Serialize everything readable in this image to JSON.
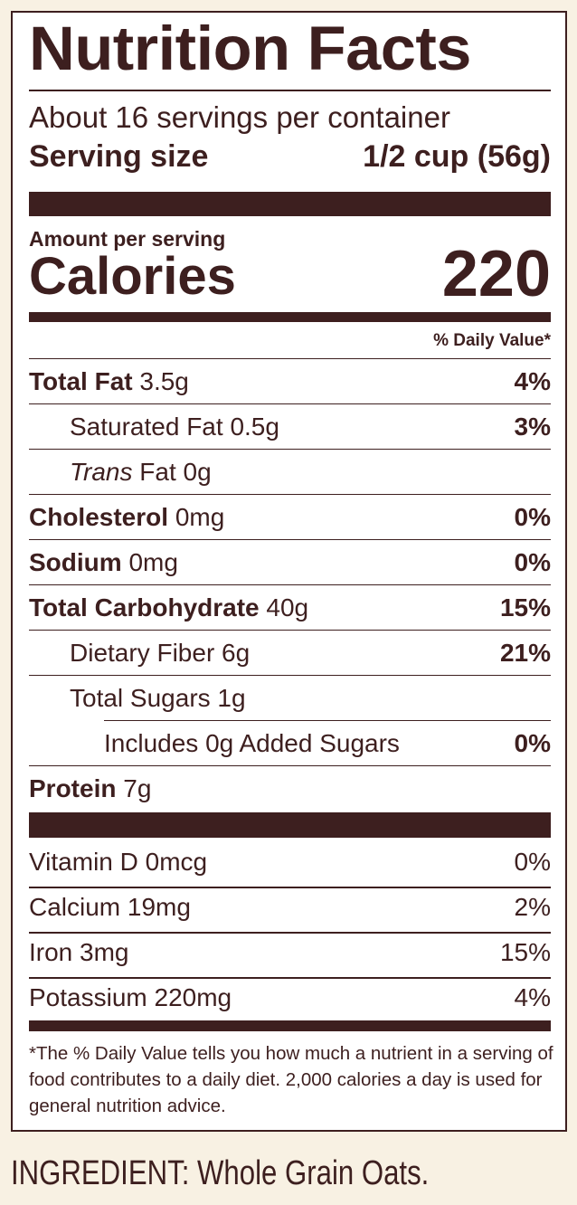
{
  "label": {
    "title": "Nutrition Facts",
    "servings_per_container": "About 16 servings per container",
    "serving_size_label": "Serving size",
    "serving_size_value": "1/2 cup (56g)",
    "amount_per_serving": "Amount per serving",
    "calories_label": "Calories",
    "calories_value": "220",
    "daily_value_header": "% Daily Value*",
    "nutrients": [
      {
        "name": "Total Fat",
        "amount": "3.5g",
        "dv": "4%"
      },
      {
        "name": "Saturated Fat",
        "amount": "0.5g",
        "dv": "3%"
      },
      {
        "name": "Trans",
        "name_suffix": "Fat",
        "amount": "0g",
        "dv": ""
      },
      {
        "name": "Cholesterol",
        "amount": "0mg",
        "dv": "0%"
      },
      {
        "name": "Sodium",
        "amount": "0mg",
        "dv": "0%"
      },
      {
        "name": "Total Carbohydrate",
        "amount": "40g",
        "dv": "15%"
      },
      {
        "name": "Dietary Fiber",
        "amount": "6g",
        "dv": "21%"
      },
      {
        "name": "Total Sugars",
        "amount": "1g",
        "dv": ""
      },
      {
        "name": "Includes 0g Added Sugars",
        "amount": "",
        "dv": "0%"
      },
      {
        "name": "Protein",
        "amount": "7g",
        "dv": ""
      }
    ],
    "vitamins": [
      {
        "name": "Vitamin D 0mcg",
        "dv": "0%"
      },
      {
        "name": "Calcium 19mg",
        "dv": "2%"
      },
      {
        "name": "Iron 3mg",
        "dv": "15%"
      },
      {
        "name": "Potassium 220mg",
        "dv": "4%"
      }
    ],
    "footnote": "*The % Daily Value tells you how much a nutrient in a serving of food contributes to a daily diet. 2,000 calories a day is used for general nutrition advice."
  },
  "ingredients": "INGREDIENT: Whole Grain Oats.",
  "colors": {
    "ink": "#3d1f1f",
    "background": "#f8f1e3",
    "panel": "#ffffff"
  }
}
